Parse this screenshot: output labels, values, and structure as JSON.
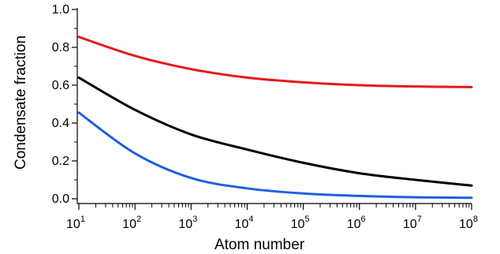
{
  "chart_data": {
    "type": "line",
    "xlabel": "Atom number",
    "ylabel": "Condensate fraction",
    "xscale": "log",
    "xlim": [
      10,
      100000000
    ],
    "ylim": [
      0.0,
      1.0
    ],
    "grid": false,
    "legend": "none",
    "y_ticks": [
      "0.0",
      "0.2",
      "0.4",
      "0.6",
      "0.8",
      "1.0"
    ],
    "x_ticks": [
      {
        "base": "10",
        "exp": "1"
      },
      {
        "base": "10",
        "exp": "2"
      },
      {
        "base": "10",
        "exp": "3"
      },
      {
        "base": "10",
        "exp": "4"
      },
      {
        "base": "10",
        "exp": "5"
      },
      {
        "base": "10",
        "exp": "6"
      },
      {
        "base": "10",
        "exp": "7"
      },
      {
        "base": "10",
        "exp": "8"
      }
    ],
    "series": [
      {
        "color": "#e31a1c",
        "x": [
          10,
          100,
          1000,
          10000,
          100000,
          1000000,
          10000000,
          100000000
        ],
        "y": [
          0.855,
          0.755,
          0.685,
          0.64,
          0.615,
          0.6,
          0.593,
          0.59
        ]
      },
      {
        "color": "#000000",
        "x": [
          10,
          100,
          1000,
          10000,
          100000,
          1000000,
          10000000,
          100000000
        ],
        "y": [
          0.64,
          0.47,
          0.34,
          0.26,
          0.19,
          0.135,
          0.1,
          0.07
        ]
      },
      {
        "color": "#1f5fe0",
        "x": [
          10,
          100,
          1000,
          10000,
          100000,
          1000000,
          10000000,
          100000000
        ],
        "y": [
          0.455,
          0.24,
          0.11,
          0.055,
          0.028,
          0.015,
          0.008,
          0.005
        ]
      }
    ]
  }
}
